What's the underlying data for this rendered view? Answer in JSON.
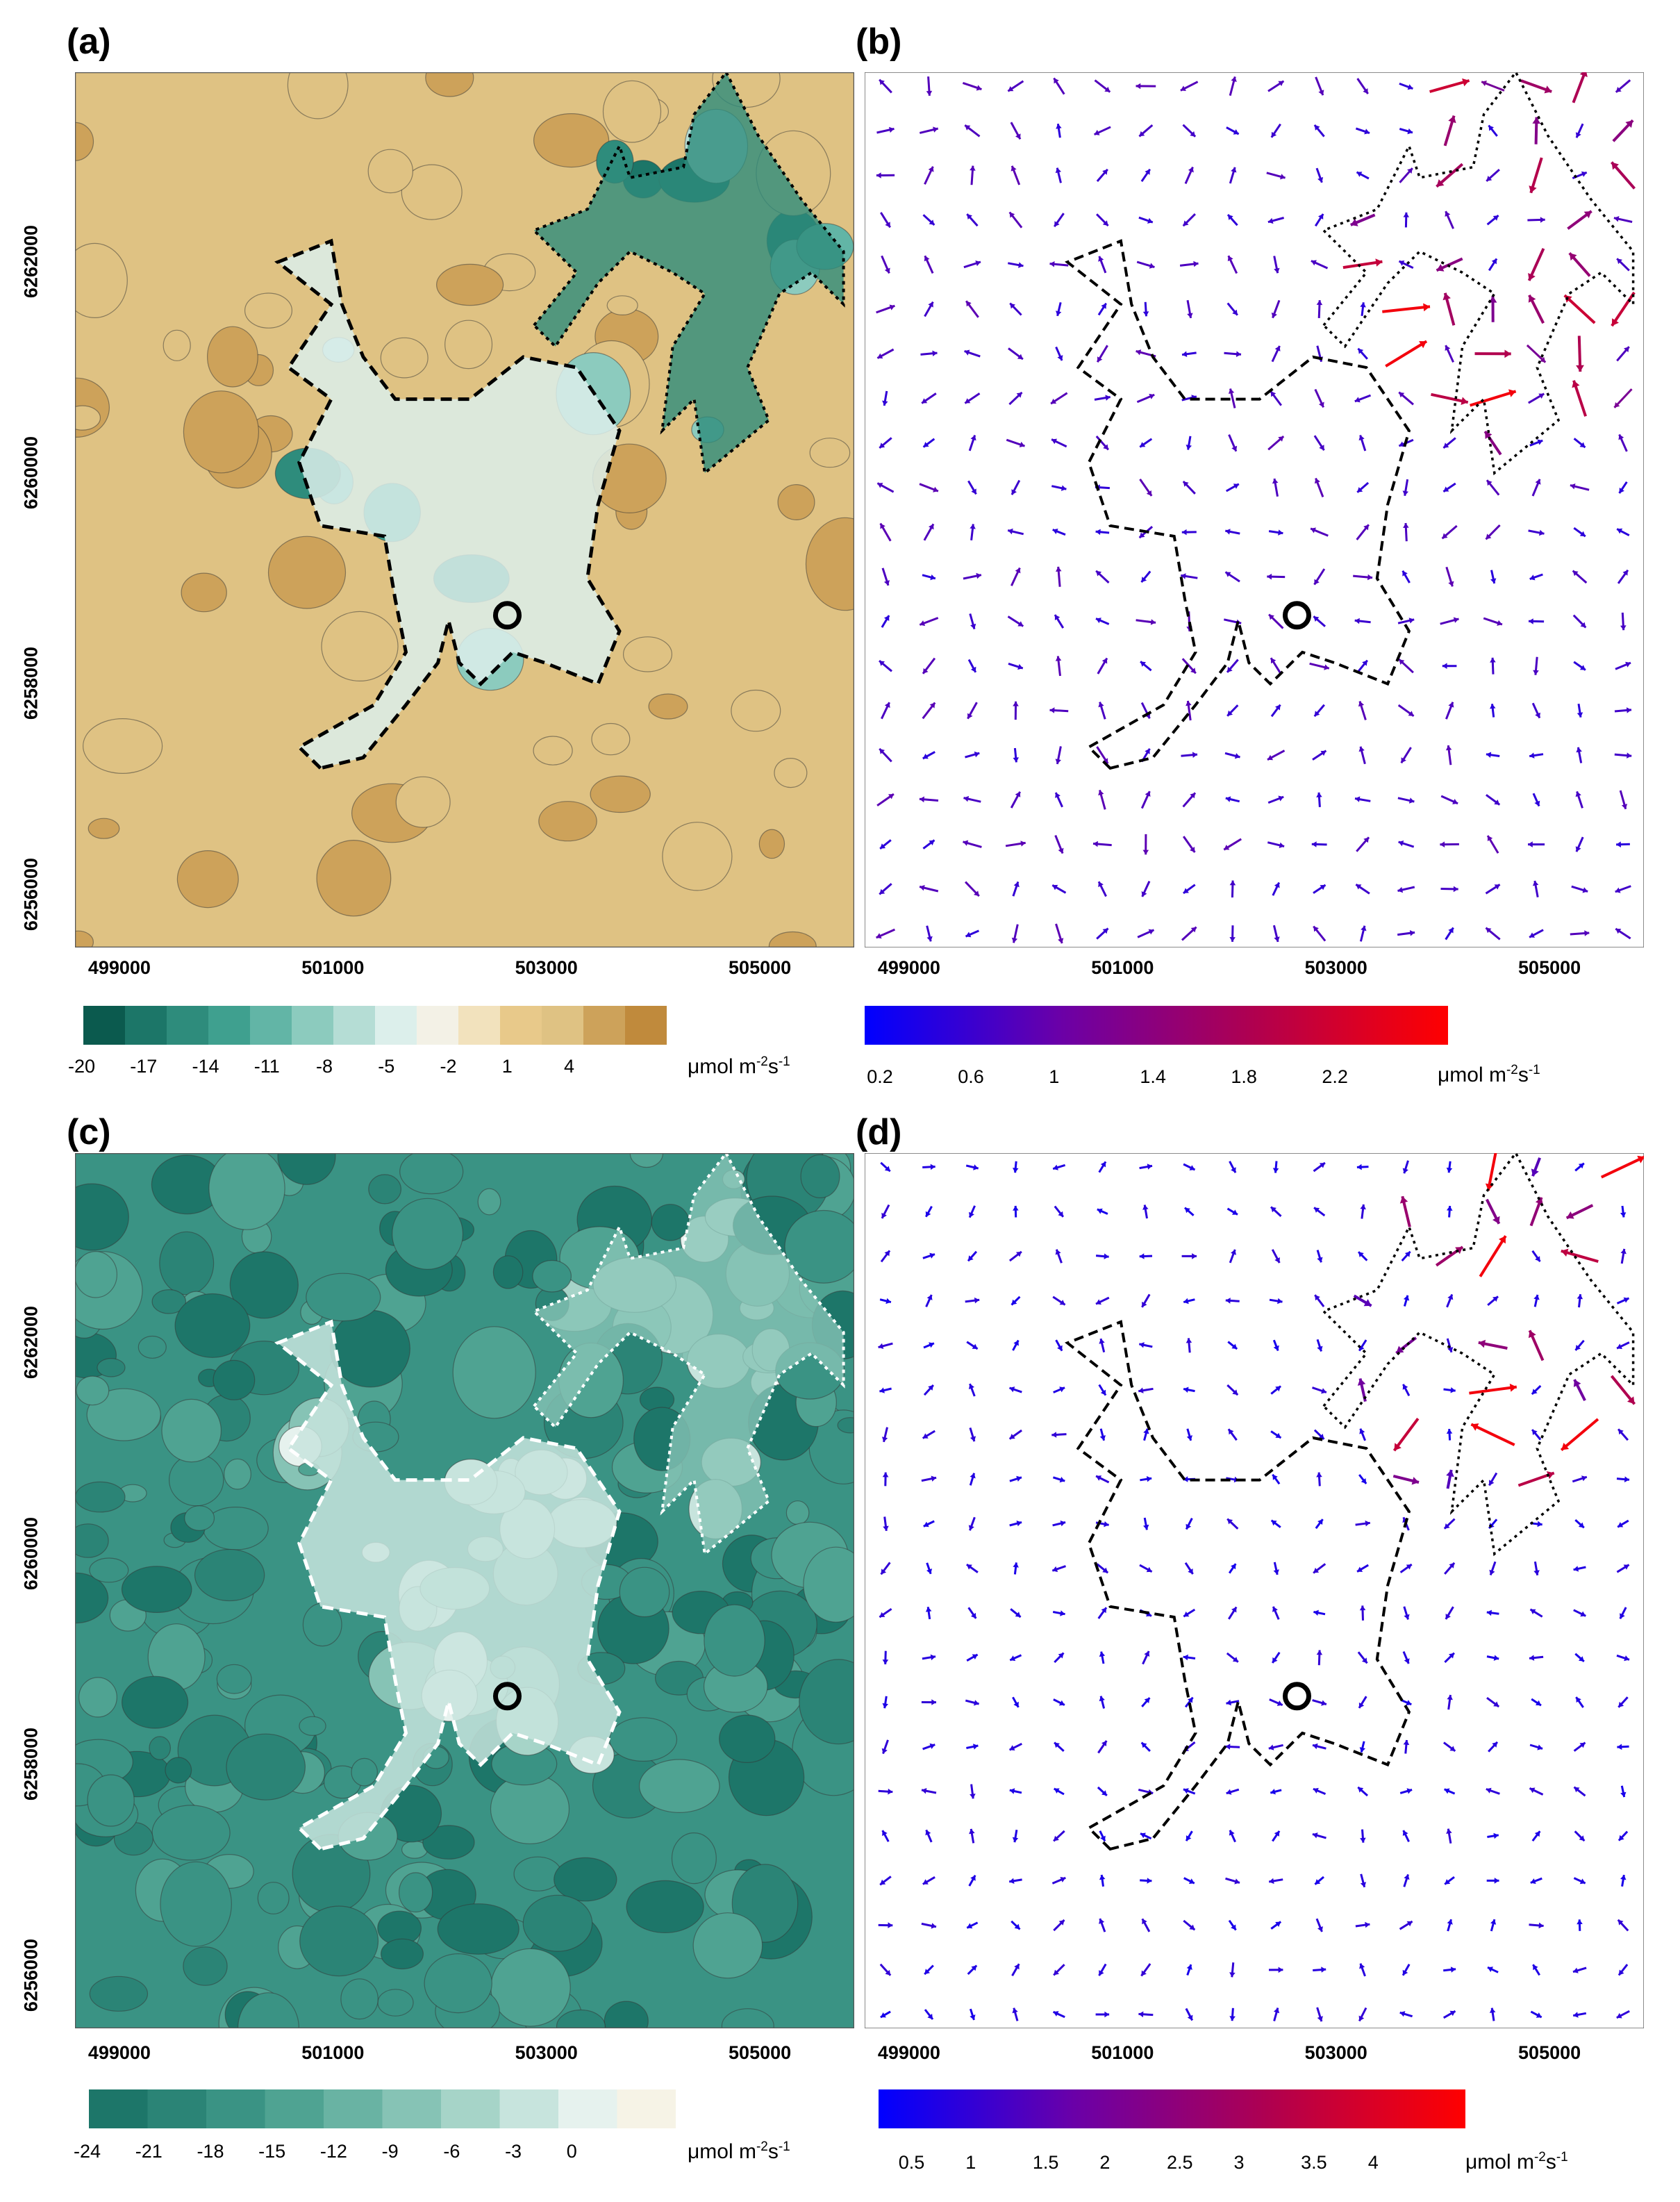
{
  "panels": [
    {
      "id": "a",
      "label": "(a)",
      "kind": "contour",
      "colors": [
        "#0b5a4e",
        "#1c7668",
        "#2e8c7c",
        "#3fa08f",
        "#62b5a6",
        "#8ccbbe",
        "#b5ddd5",
        "#dcefeb",
        "#f3f1e6",
        "#f2e2bd",
        "#e8c98a",
        "#dfc283",
        "#cda25a",
        "#c08a3c"
      ],
      "background": "#dfc283",
      "colorbar": {
        "type": "stepped",
        "labels": [
          "-20",
          "-17",
          "-14",
          "-11",
          "-8",
          "-5",
          "-2",
          "1",
          "4"
        ],
        "stops": [
          "#0b5a4e",
          "#1c7668",
          "#2e8c7c",
          "#3fa08f",
          "#62b5a6",
          "#8ccbbe",
          "#b5ddd5",
          "#dcefeb",
          "#f3f1e6",
          "#f2e2bd",
          "#e8c98a",
          "#dfc283",
          "#cda25a",
          "#c08a3c"
        ]
      },
      "unit": {
        "base": "μmol m",
        "sup1": "-2",
        "mid": "s",
        "sup2": "-1"
      }
    },
    {
      "id": "b",
      "label": "(b)",
      "kind": "vector",
      "colorbar": {
        "type": "gradient",
        "labels": [
          "0.2",
          "0.6",
          "1",
          "1.4",
          "1.8",
          "2.2"
        ],
        "stops": [
          "#0000ff",
          "#6a00a8",
          "#b0004f",
          "#ff0000"
        ]
      },
      "unit": {
        "base": "μmol m",
        "sup1": "-2",
        "mid": "s",
        "sup2": "-1"
      }
    },
    {
      "id": "c",
      "label": "(c)",
      "kind": "contour",
      "colors": [
        "#1d7669",
        "#2b8476",
        "#3a9384",
        "#4fa392",
        "#69b3a3",
        "#86c3b5",
        "#a6d4c8",
        "#c7e4dd",
        "#e6f2ee",
        "#f6f3e6"
      ],
      "background": "#3a9384",
      "colorbar": {
        "type": "stepped",
        "labels": [
          "-24",
          "-21",
          "-18",
          "-15",
          "-12",
          "-9",
          "-6",
          "-3",
          "0"
        ],
        "stops": [
          "#1d7669",
          "#2b8476",
          "#3a9384",
          "#4fa392",
          "#69b3a3",
          "#86c3b5",
          "#a6d4c8",
          "#c7e4dd",
          "#e6f2ee",
          "#f6f3e6"
        ]
      },
      "unit": {
        "base": "μmol m",
        "sup1": "-2",
        "mid": "s",
        "sup2": "-1"
      }
    },
    {
      "id": "d",
      "label": "(d)",
      "kind": "vector",
      "colorbar": {
        "type": "gradient",
        "labels": [
          "0.5",
          "1",
          "1.5",
          "2",
          "2.5",
          "3",
          "3.5",
          "4"
        ],
        "stops": [
          "#0000ff",
          "#6a00a8",
          "#b0004f",
          "#ff0000"
        ]
      },
      "unit": {
        "base": "μmol m",
        "sup1": "-2",
        "mid": "s",
        "sup2": "-1"
      }
    }
  ],
  "chart_data": {
    "type": "contour-and-vector-maps",
    "x_ticks": [
      "499000",
      "501000",
      "503000",
      "505000"
    ],
    "y_ticks": [
      "6256000",
      "6258000",
      "6260000",
      "6262000"
    ],
    "xlim": [
      498500,
      505800
    ],
    "ylim": [
      6255500,
      6263800
    ],
    "marker": {
      "x": 502550,
      "y": 6258650,
      "shape": "open-circle"
    },
    "boundary_dashed": [
      [
        500800,
        6257200
      ],
      [
        500600,
        6257400
      ],
      [
        501300,
        6257800
      ],
      [
        501600,
        6258300
      ],
      [
        501500,
        6258800
      ],
      [
        501400,
        6259400
      ],
      [
        500800,
        6259500
      ],
      [
        500600,
        6260100
      ],
      [
        500900,
        6260700
      ],
      [
        500500,
        6261000
      ],
      [
        500900,
        6261600
      ],
      [
        500400,
        6262000
      ],
      [
        500900,
        6262200
      ],
      [
        501000,
        6261600
      ],
      [
        501200,
        6261100
      ],
      [
        501500,
        6260700
      ],
      [
        502200,
        6260700
      ],
      [
        502700,
        6261100
      ],
      [
        503200,
        6261000
      ],
      [
        503600,
        6260400
      ],
      [
        503400,
        6259700
      ],
      [
        503300,
        6259000
      ],
      [
        503600,
        6258500
      ],
      [
        503400,
        6258000
      ],
      [
        502900,
        6258200
      ],
      [
        502600,
        6258300
      ],
      [
        502300,
        6258000
      ],
      [
        502100,
        6258200
      ],
      [
        502000,
        6258600
      ],
      [
        501900,
        6258200
      ],
      [
        501600,
        6257800
      ],
      [
        501200,
        6257300
      ],
      [
        500800,
        6257200
      ]
    ],
    "boundary_dotted": [
      [
        502800,
        6261400
      ],
      [
        503200,
        6261900
      ],
      [
        502800,
        6262300
      ],
      [
        503300,
        6262500
      ],
      [
        503600,
        6263100
      ],
      [
        503700,
        6262800
      ],
      [
        504200,
        6262900
      ],
      [
        504300,
        6263400
      ],
      [
        504600,
        6263800
      ],
      [
        504900,
        6263200
      ],
      [
        505300,
        6262600
      ],
      [
        505700,
        6262100
      ],
      [
        505700,
        6261600
      ],
      [
        505400,
        6261900
      ],
      [
        505100,
        6261700
      ],
      [
        504800,
        6261000
      ],
      [
        505000,
        6260500
      ],
      [
        504400,
        6260000
      ],
      [
        504300,
        6260700
      ],
      [
        504000,
        6260400
      ],
      [
        504100,
        6261200
      ],
      [
        504400,
        6261700
      ],
      [
        504100,
        6261900
      ],
      [
        503700,
        6262100
      ],
      [
        503400,
        6261800
      ],
      [
        503000,
        6261200
      ],
      [
        502800,
        6261400
      ]
    ],
    "vector_b": {
      "max_vec": 2.4
    },
    "vector_d": {
      "max_vec": 4.3
    }
  }
}
